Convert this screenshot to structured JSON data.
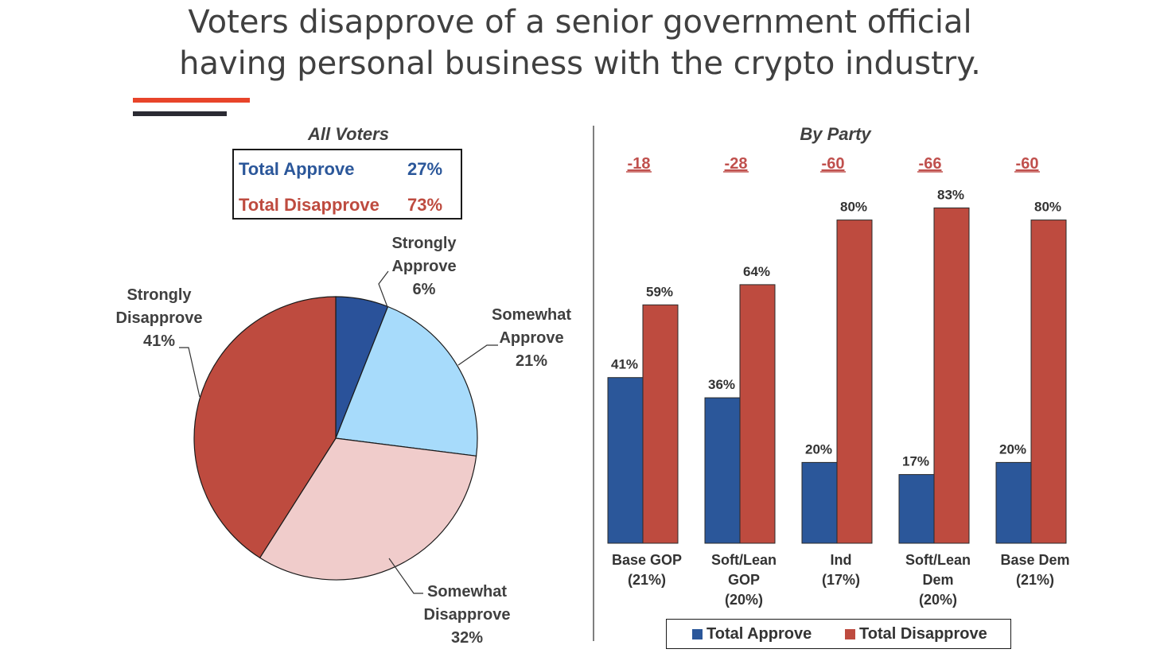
{
  "slide": {
    "title_line1": "Voters disapprove of a senior government official",
    "title_line2": "having personal business with the crypto industry."
  },
  "colors": {
    "approve": "#2b579a",
    "disapprove": "#be4b3f",
    "strongly_approve": "#2a529a",
    "somewhat_approve": "#a7dbfb",
    "somewhat_disapprove": "#f0cccb",
    "strongly_disapprove": "#be4b3f",
    "accent_red": "#e8442a",
    "accent_dark": "#2b2b33"
  },
  "chart_data": [
    {
      "type": "pie",
      "title": "All Voters",
      "summary": [
        {
          "label": "Total Approve",
          "value_label": "27%",
          "value": 27
        },
        {
          "label": "Total Disapprove",
          "value_label": "73%",
          "value": 73
        }
      ],
      "slices": [
        {
          "label_line1": "Strongly",
          "label_line2": "Approve",
          "value": 6,
          "value_label": "6%"
        },
        {
          "label_line1": "Somewhat",
          "label_line2": "Approve",
          "value": 21,
          "value_label": "21%"
        },
        {
          "label_line1": "Somewhat",
          "label_line2": "Disapprove",
          "value": 32,
          "value_label": "32%"
        },
        {
          "label_line1": "Strongly",
          "label_line2": "Disapprove",
          "value": 41,
          "value_label": "41%"
        }
      ]
    },
    {
      "type": "bar",
      "title": "By Party",
      "ylim": [
        0,
        100
      ],
      "categories": [
        {
          "line1": "Base GOP",
          "line2": "(21%)",
          "line3": ""
        },
        {
          "line1": "Soft/Lean",
          "line2": "GOP",
          "line3": "(20%)"
        },
        {
          "line1": "Ind",
          "line2": "(17%)",
          "line3": ""
        },
        {
          "line1": "Soft/Lean",
          "line2": "Dem",
          "line3": "(20%)"
        },
        {
          "line1": "Base Dem",
          "line2": "(21%)",
          "line3": ""
        }
      ],
      "net": [
        "-18",
        "-28",
        "-60",
        "-66",
        "-60"
      ],
      "series": [
        {
          "name": "Total Approve",
          "values": [
            41,
            36,
            20,
            17,
            20
          ],
          "labels": [
            "41%",
            "36%",
            "20%",
            "17%",
            "20%"
          ]
        },
        {
          "name": "Total Disapprove",
          "values": [
            59,
            64,
            80,
            83,
            80
          ],
          "labels": [
            "59%",
            "64%",
            "80%",
            "83%",
            "80%"
          ]
        }
      ],
      "legend": {
        "placement": "bottom"
      }
    }
  ]
}
